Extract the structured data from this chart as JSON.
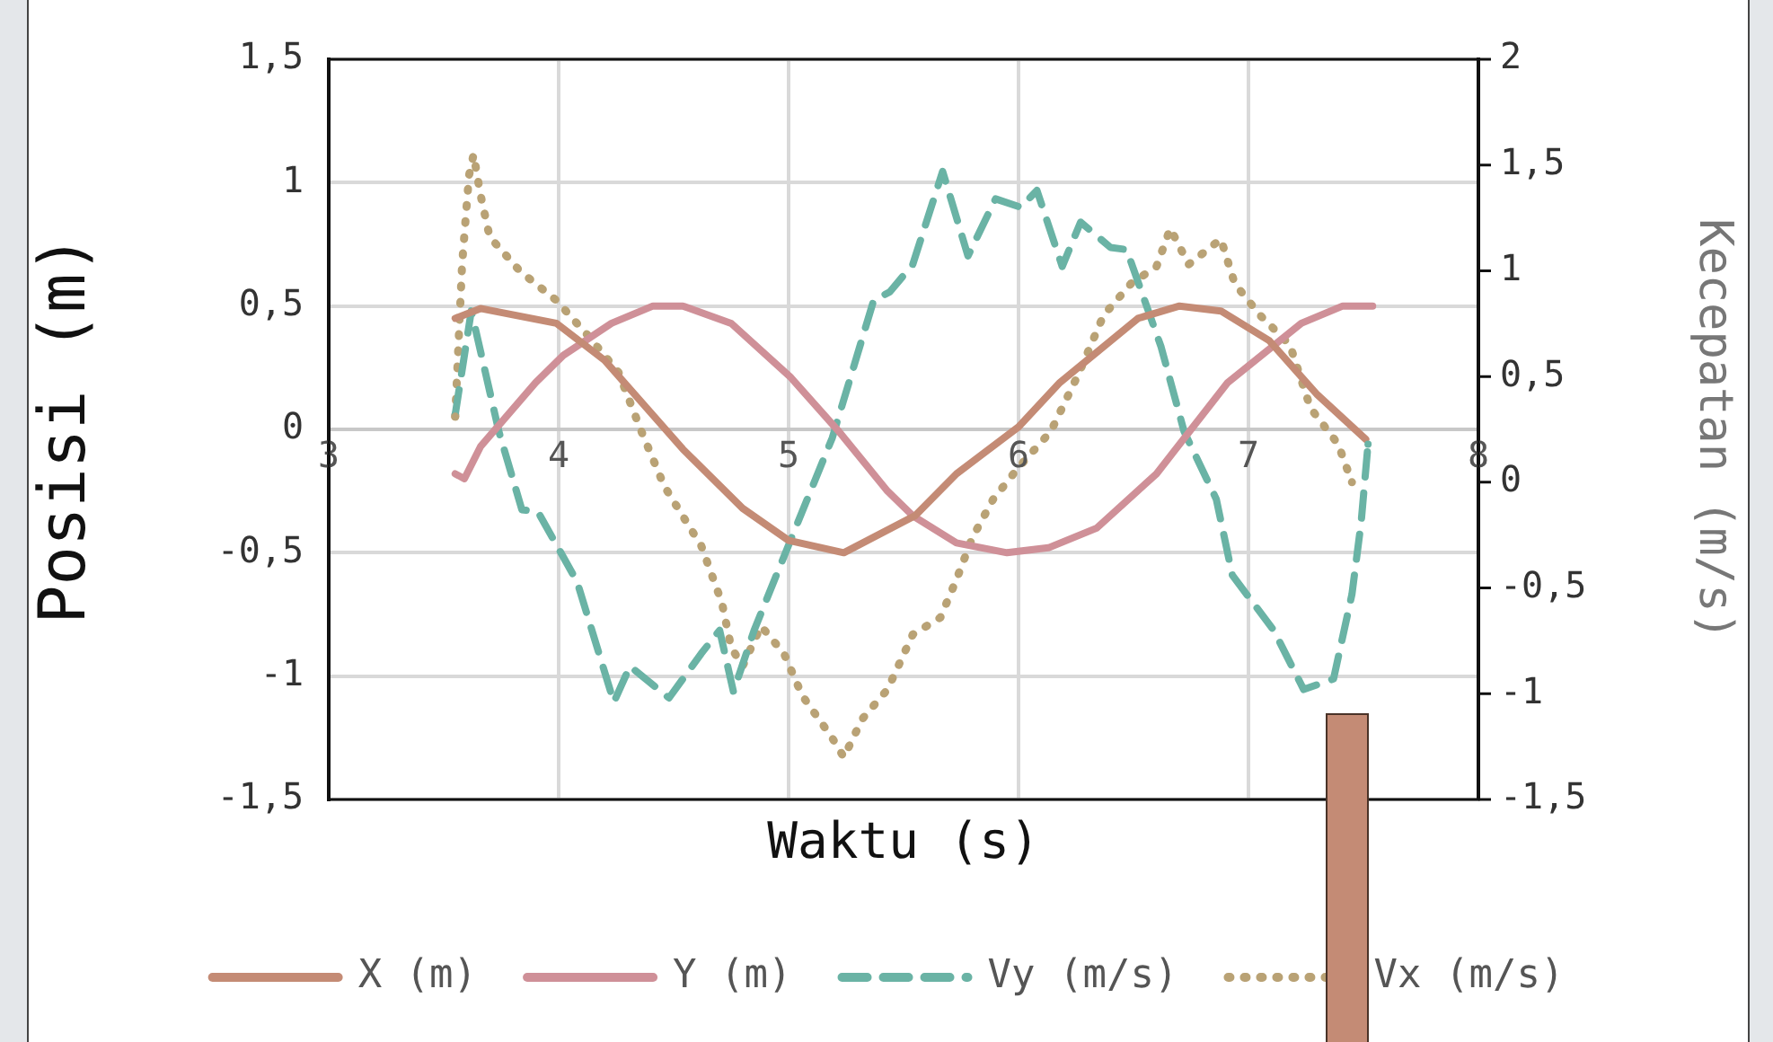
{
  "chart_data": {
    "type": "line",
    "xlabel": "Waktu (s)",
    "ylabel": "Posisi (m)",
    "y2label": "Kecepatan (m/s)",
    "xlim": [
      3,
      8
    ],
    "xticks": [
      3,
      4,
      5,
      6,
      7,
      8
    ],
    "ylim": [
      -1.5,
      1.5
    ],
    "yticks": [
      {
        "value": -1.5,
        "label": "-1,5"
      },
      {
        "value": -1,
        "label": "-1"
      },
      {
        "value": -0.5,
        "label": "-0,5"
      },
      0,
      {
        "value": 0.5,
        "label": "0,5"
      },
      1,
      {
        "value": 1.5,
        "label": "1,5"
      }
    ],
    "y2lim": [
      -1.5,
      2
    ],
    "y2ticks": [
      {
        "value": -1.5,
        "label": "-1,5"
      },
      {
        "value": -1,
        "label": "-1"
      },
      {
        "value": -0.5,
        "label": "-0,5"
      },
      0,
      {
        "value": 0.5,
        "label": "0,5"
      },
      1,
      {
        "value": 1.5,
        "label": "1,5"
      },
      2
    ],
    "grid": true,
    "legend": "bottom",
    "marker": "none",
    "series": [
      {
        "name": "X (m)",
        "color": "#c48b75",
        "line_style": "solid",
        "x": [
          3.55,
          3.66,
          3.99,
          4.2,
          4.54,
          4.8,
          5.0,
          5.24,
          5.55,
          5.73,
          6.0,
          6.18,
          6.52,
          6.7,
          6.88,
          7.09,
          7.3,
          7.51
        ],
        "values": [
          0.45,
          0.49,
          0.43,
          0.28,
          -0.08,
          -0.32,
          -0.45,
          -0.5,
          -0.35,
          -0.18,
          0.01,
          0.19,
          0.45,
          0.5,
          0.48,
          0.36,
          0.14,
          -0.04
        ]
      },
      {
        "name": "Y (m)",
        "color": "#cf9098",
        "line_style": "solid",
        "x": [
          3.55,
          3.59,
          3.66,
          3.9,
          4.02,
          4.23,
          4.41,
          4.54,
          4.75,
          5.01,
          5.22,
          5.43,
          5.54,
          5.73,
          5.95,
          6.13,
          6.34,
          6.6,
          6.91,
          7.23,
          7.41,
          7.54
        ],
        "values": [
          -0.18,
          -0.2,
          -0.07,
          0.19,
          0.3,
          0.43,
          0.5,
          0.5,
          0.43,
          0.21,
          -0.01,
          -0.25,
          -0.35,
          -0.46,
          -0.5,
          -0.48,
          -0.4,
          -0.18,
          0.19,
          0.43,
          0.5,
          0.5
        ]
      },
      {
        "name": "Vy (m/s)",
        "color": "#6ab3a5",
        "line_style": "dashed",
        "axis": "y2",
        "x": [
          3.55,
          3.62,
          3.74,
          3.84,
          3.91,
          4.08,
          4.24,
          4.31,
          4.48,
          4.62,
          4.7,
          4.76,
          4.85,
          5.01,
          5.19,
          5.37,
          5.44,
          5.54,
          5.67,
          5.78,
          5.9,
          6.01,
          6.08,
          6.19,
          6.27,
          6.4,
          6.47,
          6.62,
          6.72,
          6.86,
          6.93,
          7.11,
          7.24,
          7.37,
          7.45,
          7.49,
          7.52
        ],
        "values": [
          0.32,
          0.81,
          0.24,
          -0.13,
          -0.14,
          -0.47,
          -1.04,
          -0.87,
          -1.02,
          -0.81,
          -0.7,
          -0.99,
          -0.7,
          -0.27,
          0.21,
          0.86,
          0.9,
          1.03,
          1.47,
          1.07,
          1.34,
          1.3,
          1.38,
          1.02,
          1.23,
          1.11,
          1.1,
          0.64,
          0.24,
          -0.08,
          -0.44,
          -0.7,
          -0.98,
          -0.93,
          -0.53,
          -0.19,
          0.18
        ]
      },
      {
        "name": "Vx (m/s)",
        "color": "#b9a275",
        "line_style": "dotted",
        "axis": "y2",
        "x": [
          3.55,
          3.58,
          3.61,
          3.63,
          3.66,
          3.7,
          3.83,
          3.99,
          4.13,
          4.26,
          4.36,
          4.46,
          4.62,
          4.71,
          4.75,
          4.8,
          4.88,
          4.98,
          5.06,
          5.19,
          5.24,
          5.32,
          5.43,
          5.54,
          5.66,
          5.73,
          5.8,
          5.89,
          6.0,
          6.14,
          6.26,
          6.37,
          6.49,
          6.6,
          6.66,
          6.74,
          6.88,
          6.94,
          7.05,
          7.18,
          7.27,
          7.39,
          7.45
        ],
        "values": [
          0.31,
          1.03,
          1.45,
          1.55,
          1.36,
          1.16,
          1.0,
          0.86,
          0.69,
          0.52,
          0.24,
          -0.02,
          -0.3,
          -0.57,
          -0.78,
          -0.87,
          -0.68,
          -0.81,
          -1.01,
          -1.21,
          -1.3,
          -1.12,
          -0.98,
          -0.72,
          -0.64,
          -0.46,
          -0.26,
          -0.08,
          0.07,
          0.24,
          0.51,
          0.79,
          0.94,
          1.02,
          1.2,
          1.03,
          1.15,
          0.94,
          0.79,
          0.65,
          0.35,
          0.18,
          0.0
        ]
      }
    ]
  }
}
